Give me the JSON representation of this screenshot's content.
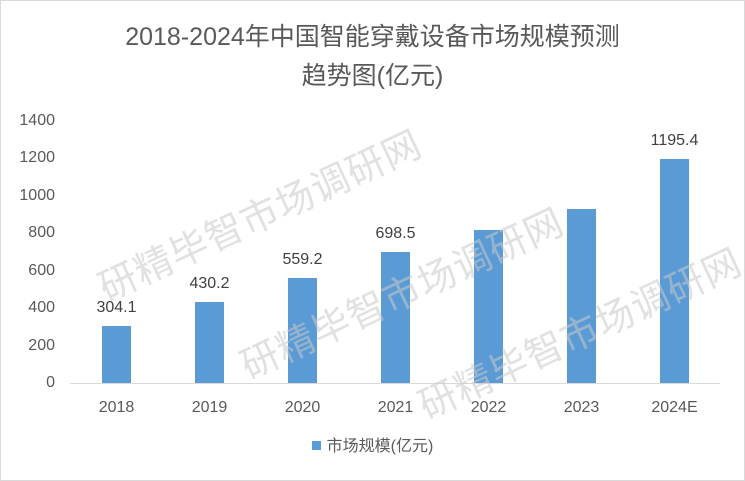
{
  "chart_data": {
    "type": "bar",
    "title": "2018-2024年中国智能穿戴设备市场规模预测趋势图(亿元)",
    "title_lines": [
      "2018-2024年中国智能穿戴设备市场规模预测",
      "趋势图(亿元)"
    ],
    "categories": [
      "2018",
      "2019",
      "2020",
      "2021",
      "2022",
      "2023",
      "2024E"
    ],
    "series": [
      {
        "name": "市场规模(亿元)",
        "color": "#5b9bd5",
        "values": [
          304.1,
          430.2,
          559.2,
          698.5,
          815,
          932,
          1195.4
        ],
        "data_labels": [
          "304.1",
          "430.2",
          "559.2",
          "698.5",
          "",
          "",
          "1195.4"
        ]
      }
    ],
    "xlabel": "",
    "ylabel": "",
    "ylim": [
      0,
      1400
    ],
    "yticks": [
      "0",
      "200",
      "400",
      "600",
      "800",
      "1000",
      "1200",
      "1400"
    ],
    "grid": false,
    "legend_position": "bottom"
  },
  "watermark": {
    "text": "研精毕智市场调研网"
  }
}
